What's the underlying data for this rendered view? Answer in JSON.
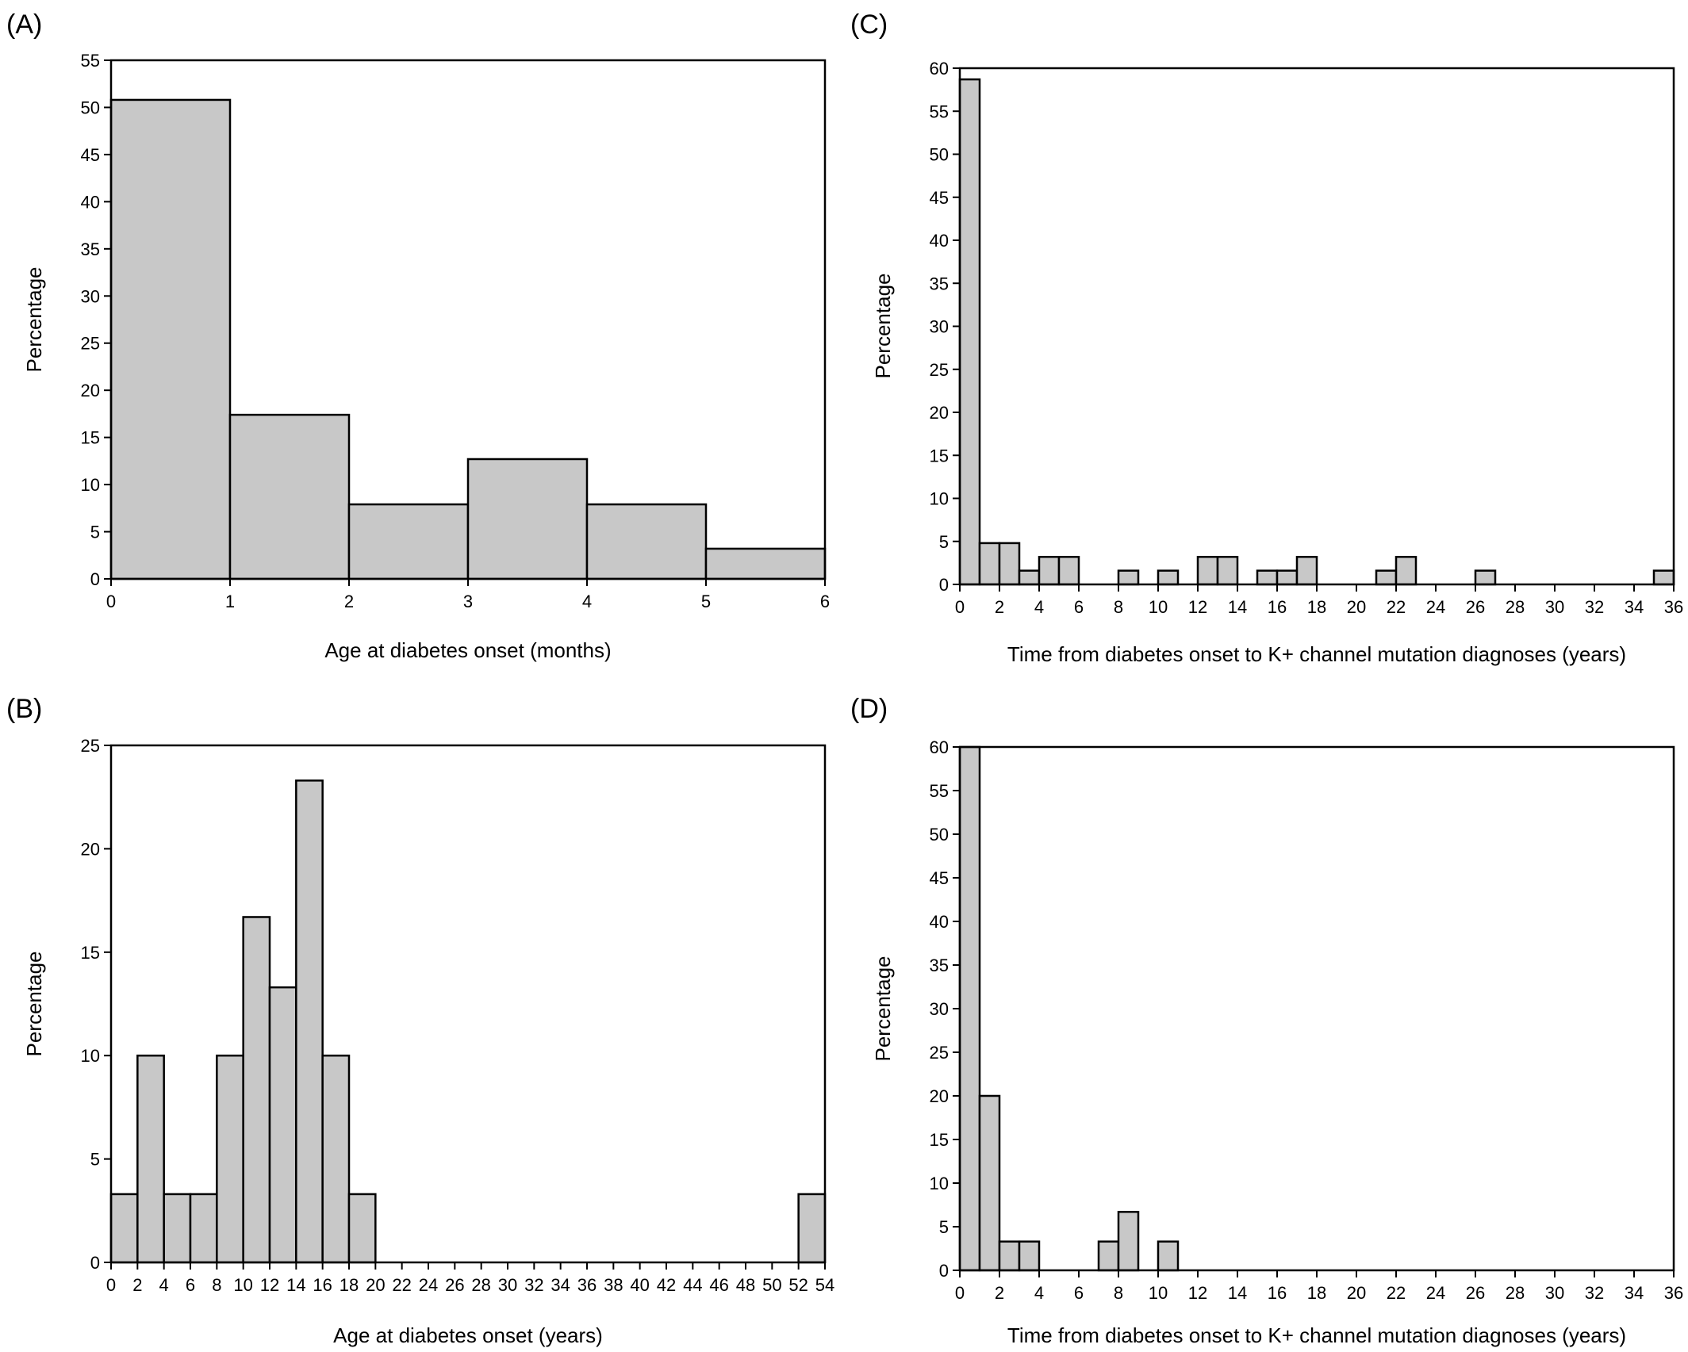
{
  "chart_data": [
    {
      "panel": "(A)",
      "type": "bar",
      "xlabel": "Age at diabetes onset (months)",
      "ylabel": "Percentage",
      "xlim": [
        0,
        6
      ],
      "ylim": [
        0,
        55
      ],
      "x_ticks": [
        0,
        1,
        2,
        3,
        4,
        5,
        6
      ],
      "y_ticks": [
        0,
        5,
        10,
        15,
        20,
        25,
        30,
        35,
        40,
        45,
        50,
        55
      ],
      "bin_width": 1,
      "bins": [
        {
          "x": 0,
          "value": 50.8
        },
        {
          "x": 1,
          "value": 17.4
        },
        {
          "x": 2,
          "value": 7.9
        },
        {
          "x": 3,
          "value": 12.7
        },
        {
          "x": 4,
          "value": 7.9
        },
        {
          "x": 5,
          "value": 3.2
        }
      ]
    },
    {
      "panel": "(B)",
      "type": "bar",
      "xlabel": "Age at diabetes onset (years)",
      "ylabel": "Percentage",
      "xlim": [
        0,
        54
      ],
      "ylim": [
        0,
        25
      ],
      "x_ticks": [
        0,
        2,
        4,
        6,
        8,
        10,
        12,
        14,
        16,
        18,
        20,
        22,
        24,
        26,
        28,
        30,
        32,
        34,
        36,
        38,
        40,
        42,
        44,
        46,
        48,
        50,
        52,
        54
      ],
      "y_ticks": [
        0,
        5,
        10,
        15,
        20,
        25
      ],
      "bin_width": 2,
      "bins": [
        {
          "x": 0,
          "value": 3.3
        },
        {
          "x": 2,
          "value": 10
        },
        {
          "x": 4,
          "value": 3.3
        },
        {
          "x": 6,
          "value": 3.3
        },
        {
          "x": 8,
          "value": 10
        },
        {
          "x": 10,
          "value": 16.7
        },
        {
          "x": 12,
          "value": 13.3
        },
        {
          "x": 14,
          "value": 23.3
        },
        {
          "x": 16,
          "value": 10
        },
        {
          "x": 18,
          "value": 3.3
        },
        {
          "x": 52,
          "value": 3.3
        }
      ]
    },
    {
      "panel": "(C)",
      "type": "bar",
      "xlabel": "Time from diabetes onset to K+ channel mutation diagnoses (years)",
      "ylabel": "Percentage",
      "xlim": [
        0,
        36
      ],
      "ylim": [
        0,
        60
      ],
      "x_ticks": [
        0,
        2,
        4,
        6,
        8,
        10,
        12,
        14,
        16,
        18,
        20,
        22,
        24,
        26,
        28,
        30,
        32,
        34,
        36
      ],
      "y_ticks": [
        0,
        5,
        10,
        15,
        20,
        25,
        30,
        35,
        40,
        45,
        50,
        55,
        60
      ],
      "bin_width": 1,
      "bins": [
        {
          "x": 0,
          "value": 58.7
        },
        {
          "x": 1,
          "value": 4.8
        },
        {
          "x": 2,
          "value": 4.8
        },
        {
          "x": 3,
          "value": 1.6
        },
        {
          "x": 4,
          "value": 3.2
        },
        {
          "x": 5,
          "value": 3.2
        },
        {
          "x": 8,
          "value": 1.6
        },
        {
          "x": 10,
          "value": 1.6
        },
        {
          "x": 12,
          "value": 3.2
        },
        {
          "x": 13,
          "value": 3.2
        },
        {
          "x": 15,
          "value": 1.6
        },
        {
          "x": 16,
          "value": 1.6
        },
        {
          "x": 17,
          "value": 3.2
        },
        {
          "x": 21,
          "value": 1.6
        },
        {
          "x": 22,
          "value": 3.2
        },
        {
          "x": 26,
          "value": 1.6
        },
        {
          "x": 35,
          "value": 1.6
        }
      ]
    },
    {
      "panel": "(D)",
      "type": "bar",
      "xlabel": "Time from diabetes onset to K+ channel mutation diagnoses (years)",
      "ylabel": "Percentage",
      "xlim": [
        0,
        36
      ],
      "ylim": [
        0,
        60
      ],
      "x_ticks": [
        0,
        2,
        4,
        6,
        8,
        10,
        12,
        14,
        16,
        18,
        20,
        22,
        24,
        26,
        28,
        30,
        32,
        34,
        36
      ],
      "y_ticks": [
        0,
        5,
        10,
        15,
        20,
        25,
        30,
        35,
        40,
        45,
        50,
        55,
        60
      ],
      "bin_width": 1,
      "bins": [
        {
          "x": 0,
          "value": 60
        },
        {
          "x": 1,
          "value": 20
        },
        {
          "x": 2,
          "value": 3.3
        },
        {
          "x": 3,
          "value": 3.3
        },
        {
          "x": 7,
          "value": 3.3
        },
        {
          "x": 8,
          "value": 6.7
        },
        {
          "x": 10,
          "value": 3.3
        }
      ]
    }
  ]
}
